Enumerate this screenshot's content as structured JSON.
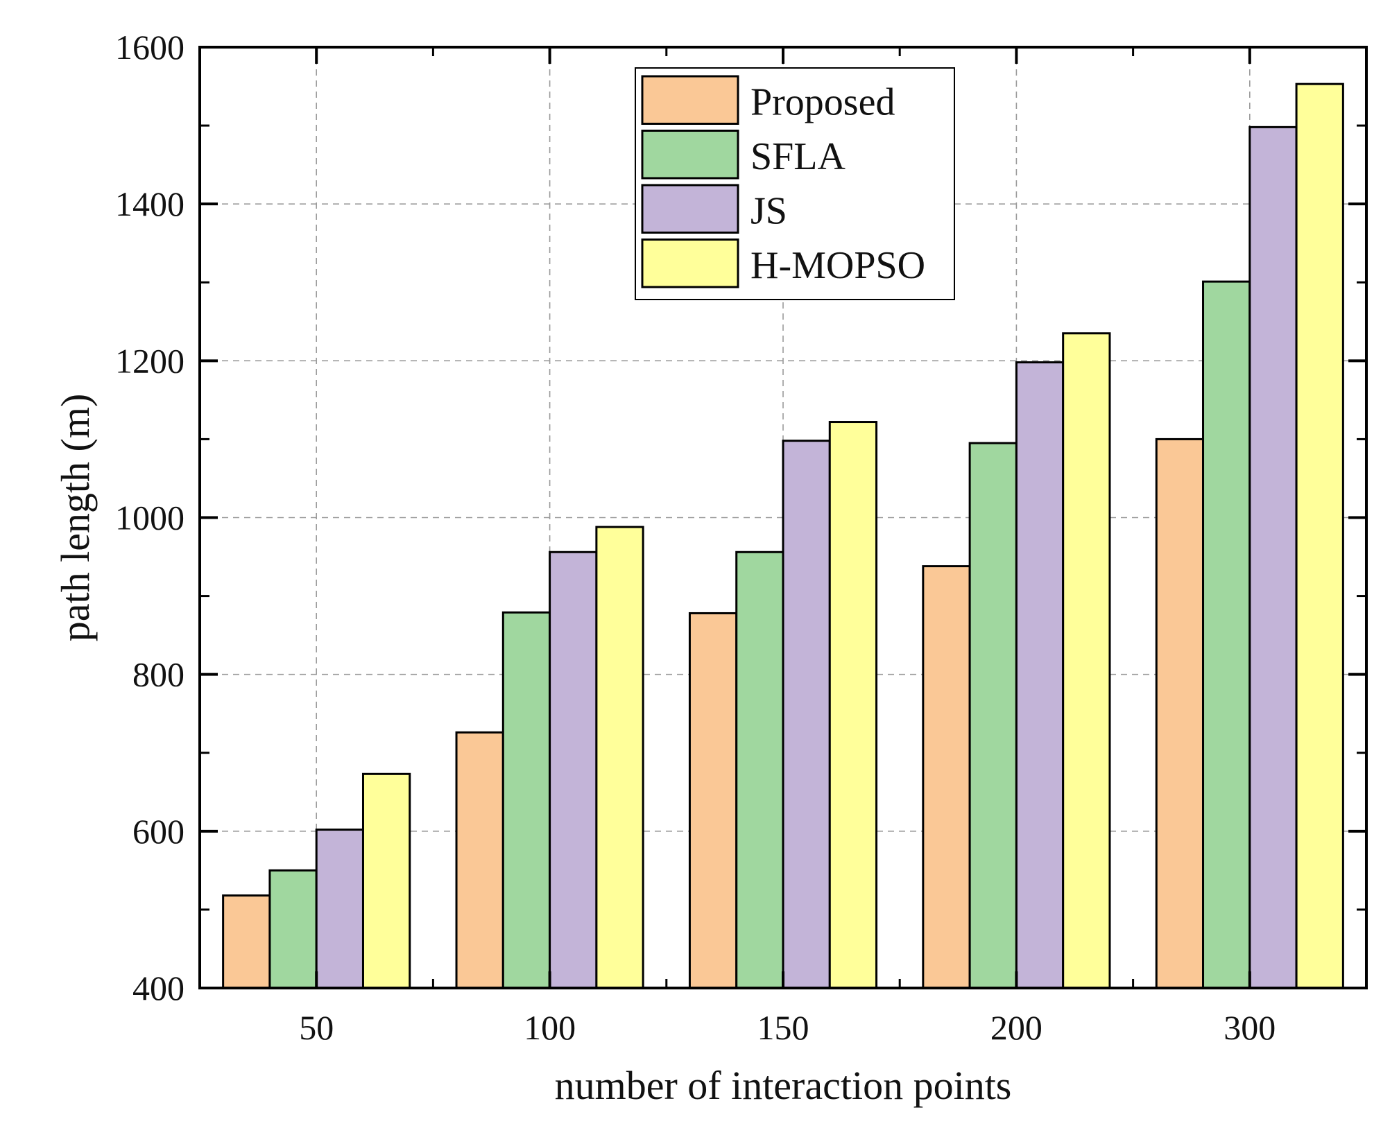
{
  "chart_data": {
    "type": "bar",
    "title": "",
    "xlabel": "number of interaction points",
    "ylabel": "path length (m)",
    "categories": [
      "50",
      "100",
      "150",
      "200",
      "300"
    ],
    "ylim": [
      400,
      1600
    ],
    "yticks": [
      "400",
      "600",
      "800",
      "1000",
      "1200",
      "1400",
      "1600"
    ],
    "grid": true,
    "legend_position": "top-center",
    "series": [
      {
        "name": "Proposed",
        "color": "#fac896",
        "values": [
          518,
          726,
          878,
          938,
          1100
        ]
      },
      {
        "name": "SFLA",
        "color": "#a0d79f",
        "values": [
          550,
          879,
          956,
          1095,
          1301
        ]
      },
      {
        "name": "JS",
        "color": "#c3b4d8",
        "values": [
          602,
          956,
          1098,
          1198,
          1498
        ]
      },
      {
        "name": "H-MOPSO",
        "color": "#ffff9a",
        "values": [
          673,
          988,
          1122,
          1235,
          1553
        ]
      }
    ]
  }
}
